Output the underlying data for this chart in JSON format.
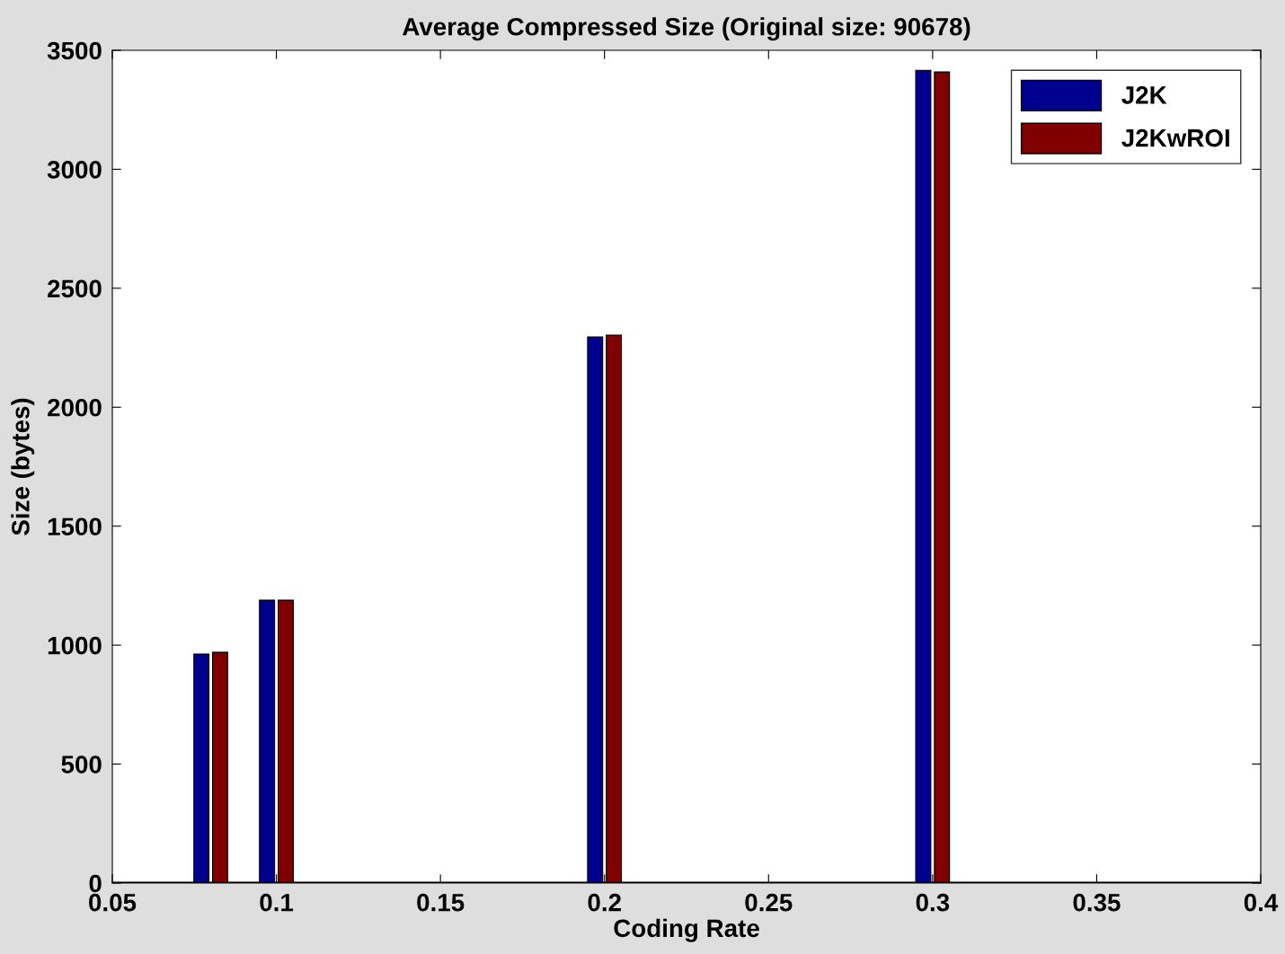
{
  "chart_data": {
    "type": "bar",
    "title": "Average Compressed Size (Original size: 90678)",
    "xlabel": "Coding Rate",
    "ylabel": "Size (bytes)",
    "x": [
      0.08,
      0.1,
      0.2,
      0.3
    ],
    "series": [
      {
        "name": "J2K",
        "color": "#00008f",
        "values": [
          963,
          1189,
          2295,
          3416
        ]
      },
      {
        "name": "J2KwROI",
        "color": "#800000",
        "values": [
          970,
          1189,
          2303,
          3409
        ]
      }
    ],
    "xlim": [
      0.05,
      0.4
    ],
    "xticks": [
      0.05,
      0.1,
      0.15,
      0.2,
      0.25,
      0.3,
      0.35,
      0.4
    ],
    "ylim": [
      0,
      3500
    ],
    "yticks": [
      0,
      500,
      1000,
      1500,
      2000,
      2500,
      3000,
      3500
    ],
    "grid": false,
    "legend": "top right"
  }
}
